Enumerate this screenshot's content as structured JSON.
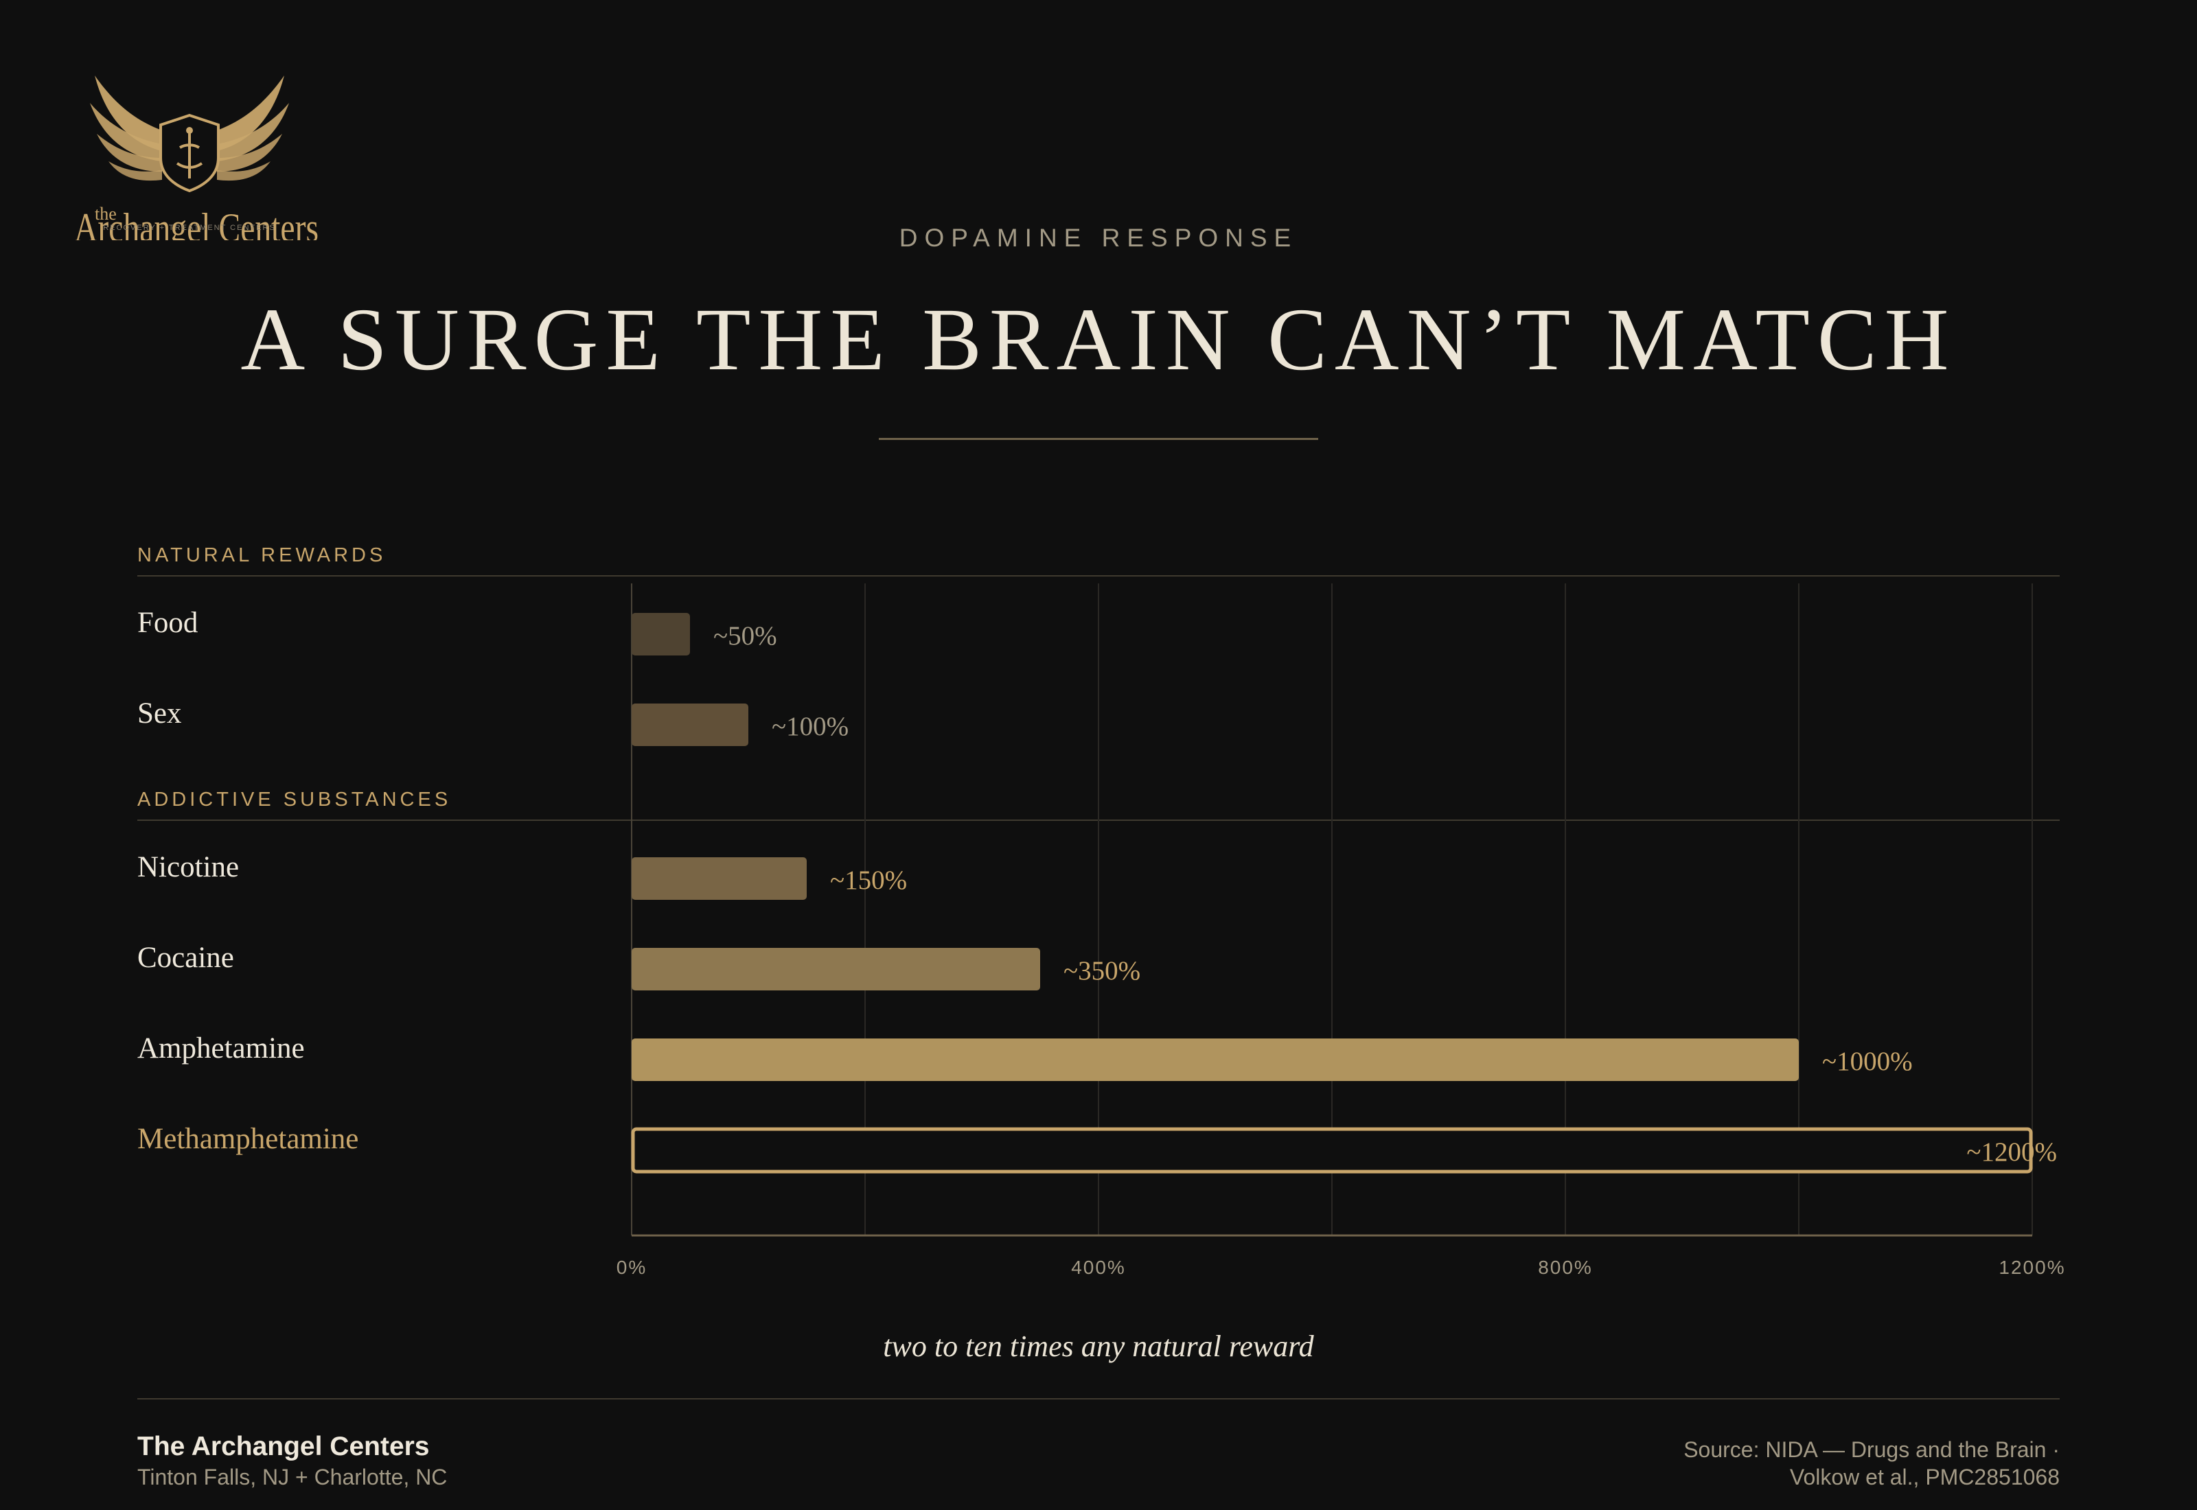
{
  "brand": {
    "logo_the": "the",
    "logo_name": "Archangel Centers",
    "logo_tagline": "RECOVERY + TREATMENT CENTERS",
    "gold": "#c9a66b"
  },
  "header": {
    "eyebrow": "DOPAMINE RESPONSE",
    "title": "A SURGE THE BRAIN CAN’T MATCH"
  },
  "chart_data": {
    "type": "bar",
    "orientation": "horizontal",
    "groups": [
      {
        "label": "NATURAL REWARDS",
        "categories": [
          "Food",
          "Sex"
        ]
      },
      {
        "label": "ADDICTIVE SUBSTANCES",
        "categories": [
          "Nicotine",
          "Cocaine",
          "Amphetamine",
          "Methamphetamine"
        ]
      }
    ],
    "categories": [
      "Food",
      "Sex",
      "Nicotine",
      "Cocaine",
      "Amphetamine",
      "Methamphetamine"
    ],
    "values": [
      50,
      100,
      150,
      350,
      1000,
      1200
    ],
    "data_labels": [
      "~50%",
      "~100%",
      "~150%",
      "~350%",
      "~1000%",
      "~1200%"
    ],
    "highlight": "Methamphetamine",
    "xlim": [
      0,
      1200
    ],
    "x_ticks": [
      0,
      400,
      800,
      1200
    ],
    "x_tick_labels": [
      "0%",
      "400%",
      "800%",
      "1200%"
    ],
    "grid": true,
    "bar_colors": [
      "#4f4331",
      "#615038",
      "#796545",
      "#8e7850",
      "#b0945e",
      "#0f0f0f"
    ]
  },
  "caption": "two to ten times any natural reward",
  "footer": {
    "name": "The Archangel Centers",
    "location": "Tinton Falls, NJ + Charlotte, NC",
    "source_line1": "Source: NIDA — Drugs and the Brain ·",
    "source_line2": "Volkow et al., PMC2851068"
  }
}
